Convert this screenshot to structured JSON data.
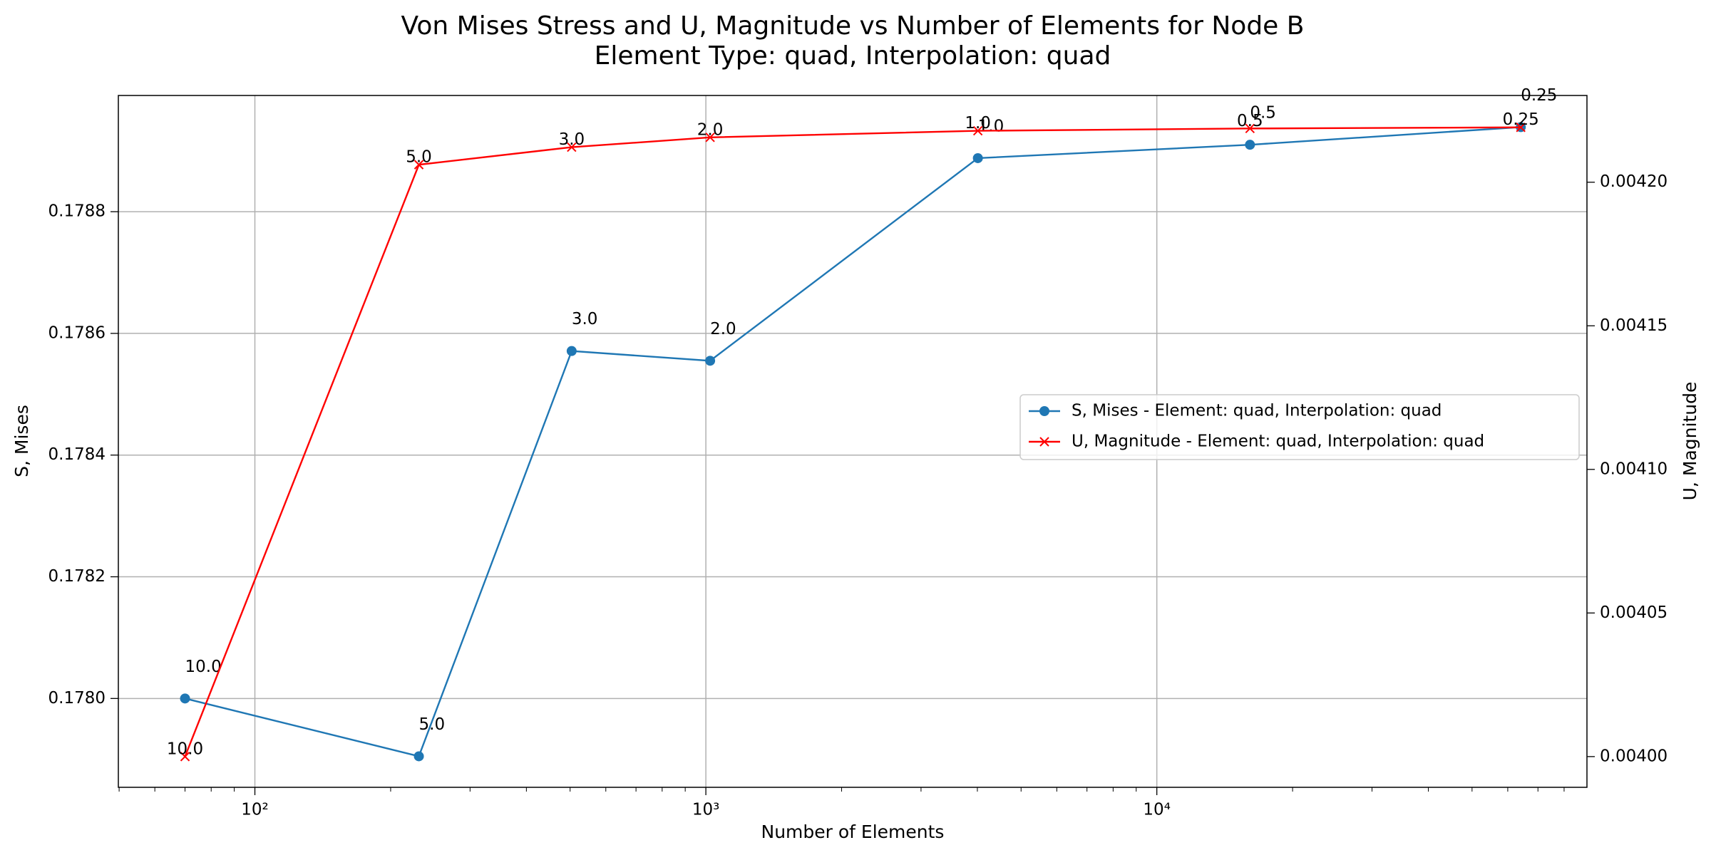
{
  "chart_data": {
    "type": "line",
    "title": "Von Mises Stress and U, Magnitude vs Number of Elements for Node B",
    "subtitle": "Element Type: quad, Interpolation: quad",
    "x_label": "Number of Elements",
    "y_label": "S, Mises",
    "y2_label": "U, Magnitude",
    "x": [
      70,
      231,
      504,
      1022,
      4010,
      16090,
      64130
    ],
    "xscale": "log",
    "xlim": [
      49.8,
      89900
    ],
    "xticks": [
      {
        "value": 100,
        "label": "10²"
      },
      {
        "value": 1000,
        "label": "10³"
      },
      {
        "value": 10000,
        "label": "10⁴"
      }
    ],
    "ylim": [
      0.177854,
      0.178991
    ],
    "yticks": [
      {
        "value": 0.178,
        "label": "0.1780"
      },
      {
        "value": 0.1782,
        "label": "0.1782"
      },
      {
        "value": 0.1784,
        "label": "0.1784"
      },
      {
        "value": 0.1786,
        "label": "0.1786"
      },
      {
        "value": 0.1788,
        "label": "0.1788"
      }
    ],
    "y2lim": [
      0.0039893,
      0.0042302
    ],
    "y2ticks": [
      {
        "value": 0.004,
        "label": "0.00400"
      },
      {
        "value": 0.00405,
        "label": "0.00405"
      },
      {
        "value": 0.0041,
        "label": "0.00410"
      },
      {
        "value": 0.00415,
        "label": "0.00415"
      },
      {
        "value": 0.0042,
        "label": "0.00420"
      }
    ],
    "grid": true,
    "legend": "center right",
    "series": [
      {
        "name": "S, Mises - Element: quad, Interpolation: quad",
        "color": "#1f77b4",
        "marker": "o",
        "values": [
          0.178,
          0.177905,
          0.178571,
          0.178555,
          0.178888,
          0.17891,
          0.178939
        ],
        "point_labels": [
          "10.0",
          "5.0",
          "3.0",
          "2.0",
          "1.0",
          "0.5",
          "0.25"
        ]
      },
      {
        "name": "U, Magnitude - Element: quad, Interpolation: quad",
        "color": "#ff0000",
        "marker": "x",
        "axis": "y2",
        "values": [
          0.004,
          0.0042061,
          0.0042122,
          0.0042156,
          0.0042179,
          0.0042187,
          0.0042191
        ],
        "point_labels": [
          "10.0",
          "5.0",
          "3.0",
          "2.0",
          "1.0",
          "0.5",
          "0.25"
        ]
      }
    ]
  }
}
